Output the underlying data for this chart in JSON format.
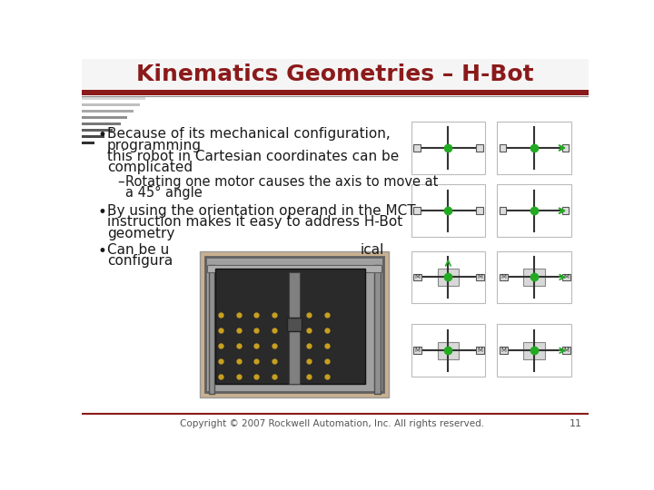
{
  "title": "Kinematics Geometries – H-Bot",
  "title_color": "#8B1A1A",
  "title_fontsize": 18,
  "background_color": "#FFFFFF",
  "header_bar_color": "#8B1A1A",
  "bullet1_line1": "Because of its mechanical configuration,",
  "bullet1_line2": "programming",
  "bullet1_line3": "this robot in Cartesian coordinates can be",
  "bullet1_line4": "complicated",
  "sub_bullet1_line1": "Rotating one motor causes the axis to move at",
  "sub_bullet1_line2": "a 45° angle",
  "bullet2_line1": "By using the orientation operand in the MCT",
  "bullet2_line2": "instruction makes it easy to address H-Bot",
  "bullet2_line3": "geometry",
  "bullet3_line1": "Can be u",
  "bullet3_suffix": "ical",
  "bullet3_line2": "configura",
  "footer_text": "Copyright © 2007 Rockwell Automation, Inc. All rights reserved.",
  "page_number": "11",
  "text_color": "#1a1a1a",
  "footer_color": "#555555",
  "font_size_body": 11,
  "stripe_grays": [
    "#e8e8e8",
    "#d8d8d8",
    "#c0c0c0",
    "#a8a8a8",
    "#909090",
    "#787878",
    "#606060",
    "#484848",
    "#303030"
  ],
  "stripe_widths": [
    95,
    90,
    82,
    74,
    65,
    55,
    44,
    32,
    18
  ]
}
